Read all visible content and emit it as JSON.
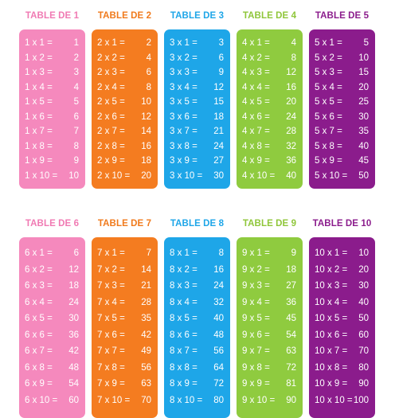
{
  "colors": {
    "pink": "#f589bd",
    "orange": "#f47c20",
    "blue": "#1ea6e8",
    "green": "#8fcb3f",
    "purple": "#8b1c8c",
    "title_pink": "#f07ab3",
    "title_orange": "#f07a1c",
    "title_blue": "#1ea6e8",
    "title_green": "#8fc63a",
    "title_purple": "#8b1c8c"
  },
  "tables": [
    {
      "title": "TABLE DE 1",
      "color": "pink",
      "rows": [
        {
          "expr": "1 x 1 =",
          "result": "1"
        },
        {
          "expr": "1 x 2 =",
          "result": "2"
        },
        {
          "expr": "1 x 3 =",
          "result": "3"
        },
        {
          "expr": "1 x 4 =",
          "result": "4"
        },
        {
          "expr": "1 x 5 =",
          "result": "5"
        },
        {
          "expr": "1 x 6 =",
          "result": "6"
        },
        {
          "expr": "1 x 7 =",
          "result": "7"
        },
        {
          "expr": "1 x 8 =",
          "result": "8"
        },
        {
          "expr": "1 x 9 =",
          "result": "9"
        },
        {
          "expr": "1 x 10 =",
          "result": "10"
        }
      ]
    },
    {
      "title": "TABLE DE 2",
      "color": "orange",
      "rows": [
        {
          "expr": "2 x 1 =",
          "result": "2"
        },
        {
          "expr": "2 x 2 =",
          "result": "4"
        },
        {
          "expr": "2 x 3 =",
          "result": "6"
        },
        {
          "expr": "2 x 4 =",
          "result": "8"
        },
        {
          "expr": "2 x 5 =",
          "result": "10"
        },
        {
          "expr": "2 x 6 =",
          "result": "12"
        },
        {
          "expr": "2 x 7 =",
          "result": "14"
        },
        {
          "expr": "2 x 8 =",
          "result": "16"
        },
        {
          "expr": "2 x 9 =",
          "result": "18"
        },
        {
          "expr": "2 x 10 =",
          "result": "20"
        }
      ]
    },
    {
      "title": "TABLE DE 3",
      "color": "blue",
      "rows": [
        {
          "expr": "3 x 1 =",
          "result": "3"
        },
        {
          "expr": "3 x 2 =",
          "result": "6"
        },
        {
          "expr": "3 x 3 =",
          "result": "9"
        },
        {
          "expr": "3 x 4 =",
          "result": "12"
        },
        {
          "expr": "3 x 5 =",
          "result": "15"
        },
        {
          "expr": "3 x 6 =",
          "result": "18"
        },
        {
          "expr": "3 x 7 =",
          "result": "21"
        },
        {
          "expr": "3 x 8 =",
          "result": "24"
        },
        {
          "expr": "3 x 9 =",
          "result": "27"
        },
        {
          "expr": "3 x 10 =",
          "result": "30"
        }
      ]
    },
    {
      "title": "TABLE DE 4",
      "color": "green",
      "rows": [
        {
          "expr": "4 x 1 =",
          "result": "4"
        },
        {
          "expr": "4 x 2 =",
          "result": "8"
        },
        {
          "expr": "4 x 3 =",
          "result": "12"
        },
        {
          "expr": "4 x 4 =",
          "result": "16"
        },
        {
          "expr": "4 x 5 =",
          "result": "20"
        },
        {
          "expr": "4 x 6 =",
          "result": "24"
        },
        {
          "expr": "4 x 7 =",
          "result": "28"
        },
        {
          "expr": "4 x 8 =",
          "result": "32"
        },
        {
          "expr": "4 x 9 =",
          "result": "36"
        },
        {
          "expr": "4 x 10 =",
          "result": "40"
        }
      ]
    },
    {
      "title": "TABLE DE 5",
      "color": "purple",
      "rows": [
        {
          "expr": "5 x 1 =",
          "result": "5"
        },
        {
          "expr": "5 x 2 =",
          "result": "10"
        },
        {
          "expr": "5 x 3 =",
          "result": "15"
        },
        {
          "expr": "5 x 4 =",
          "result": "20"
        },
        {
          "expr": "5 x 5 =",
          "result": "25"
        },
        {
          "expr": "5 x 6 =",
          "result": "30"
        },
        {
          "expr": "5 x 7 =",
          "result": "35"
        },
        {
          "expr": "5 x 8 =",
          "result": "40"
        },
        {
          "expr": "5 x 9 =",
          "result": "45"
        },
        {
          "expr": "5 x 10 =",
          "result": "50"
        }
      ]
    },
    {
      "title": "TABLE DE 6",
      "color": "pink",
      "rows": [
        {
          "expr": "6 x 1 =",
          "result": "6"
        },
        {
          "expr": "6 x 2 =",
          "result": "12"
        },
        {
          "expr": "6 x 3 =",
          "result": "18"
        },
        {
          "expr": "6 x 4 =",
          "result": "24"
        },
        {
          "expr": "6 x 5 =",
          "result": "30"
        },
        {
          "expr": "6 x 6 =",
          "result": "36"
        },
        {
          "expr": "6 x 7 =",
          "result": "42"
        },
        {
          "expr": "6 x 8 =",
          "result": "48"
        },
        {
          "expr": "6 x 9 =",
          "result": "54"
        },
        {
          "expr": "6 x 10 =",
          "result": "60"
        }
      ]
    },
    {
      "title": "TABLE DE 7",
      "color": "orange",
      "rows": [
        {
          "expr": "7 x 1 =",
          "result": "7"
        },
        {
          "expr": "7 x 2 =",
          "result": "14"
        },
        {
          "expr": "7 x 3 =",
          "result": "21"
        },
        {
          "expr": "7 x 4 =",
          "result": "28"
        },
        {
          "expr": "7 x 5 =",
          "result": "35"
        },
        {
          "expr": "7 x 6 =",
          "result": "42"
        },
        {
          "expr": "7 x 7 =",
          "result": "49"
        },
        {
          "expr": "7 x 8 =",
          "result": "56"
        },
        {
          "expr": "7 x 9 =",
          "result": "63"
        },
        {
          "expr": "7 x 10 =",
          "result": "70"
        }
      ]
    },
    {
      "title": "TABLE DE 8",
      "color": "blue",
      "rows": [
        {
          "expr": "8 x 1 =",
          "result": "8"
        },
        {
          "expr": "8 x 2 =",
          "result": "16"
        },
        {
          "expr": "8 x 3 =",
          "result": "24"
        },
        {
          "expr": "8 x 4 =",
          "result": "32"
        },
        {
          "expr": "8 x 5 =",
          "result": "40"
        },
        {
          "expr": "8 x 6 =",
          "result": "48"
        },
        {
          "expr": "8 x 7 =",
          "result": "56"
        },
        {
          "expr": "8 x 8 =",
          "result": "64"
        },
        {
          "expr": "8 x 9 =",
          "result": "72"
        },
        {
          "expr": "8 x 10 =",
          "result": "80"
        }
      ]
    },
    {
      "title": "TABLE DE 9",
      "color": "green",
      "rows": [
        {
          "expr": "9 x 1 =",
          "result": "9"
        },
        {
          "expr": "9 x 2 =",
          "result": "18"
        },
        {
          "expr": "9 x 3 =",
          "result": "27"
        },
        {
          "expr": "9 x 4 =",
          "result": "36"
        },
        {
          "expr": "9 x 5 =",
          "result": "45"
        },
        {
          "expr": "9 x 6 =",
          "result": "54"
        },
        {
          "expr": "9 x 7 =",
          "result": "63"
        },
        {
          "expr": "9 x 8 =",
          "result": "72"
        },
        {
          "expr": "9 x 9 =",
          "result": "81"
        },
        {
          "expr": "9 x 10 =",
          "result": "90"
        }
      ]
    },
    {
      "title": "TABLE DE 10",
      "color": "purple",
      "rows": [
        {
          "expr": "10 x 1 =",
          "result": "10"
        },
        {
          "expr": "10 x 2 =",
          "result": "20"
        },
        {
          "expr": "10 x 3 =",
          "result": "30"
        },
        {
          "expr": "10 x 4 =",
          "result": "40"
        },
        {
          "expr": "10 x 5 =",
          "result": "50"
        },
        {
          "expr": "10 x 6 =",
          "result": "60"
        },
        {
          "expr": "10 x 7 =",
          "result": "70"
        },
        {
          "expr": "10 x 8 =",
          "result": "80"
        },
        {
          "expr": "10 x 9 =",
          "result": "90"
        },
        {
          "expr": "10 x 10 =",
          "result": "100"
        }
      ]
    }
  ]
}
